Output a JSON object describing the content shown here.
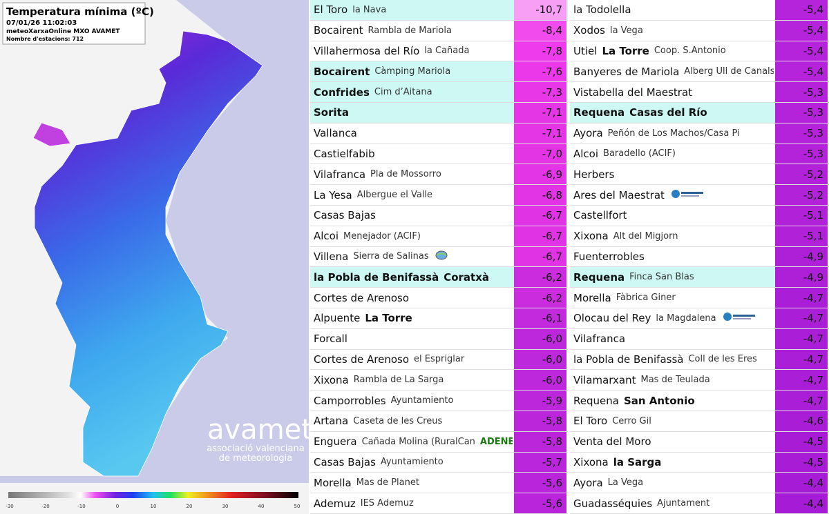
{
  "map": {
    "title": "Temperatura mínima (ºC)",
    "timestamp": "07/01/26 11:02:03",
    "source": "meteoXarxaOnline MXO AVAMET",
    "stations": "Nombre d'estacions: 712",
    "logo": {
      "name": "avamet",
      "line1": "associació valenciana",
      "line2": "de meteorologia"
    },
    "colorbar": {
      "ticks": [
        -30,
        -20,
        -10,
        0,
        10,
        20,
        30,
        40,
        50
      ]
    }
  },
  "table": {
    "columns": [
      {
        "rows": [
          {
            "parts": [
              {
                "text": "El Toro",
                "style": "name"
              },
              {
                "text": "la Nava",
                "style": "place"
              }
            ],
            "value": "-10,7",
            "highlight": true
          },
          {
            "parts": [
              {
                "text": "Bocairent",
                "style": "name"
              },
              {
                "text": "Rambla de Mariola",
                "style": "place"
              }
            ],
            "value": "-8,4"
          },
          {
            "parts": [
              {
                "text": "Villahermosa del Río",
                "style": "name"
              },
              {
                "text": "la Cañada",
                "style": "place"
              }
            ],
            "value": "-7,8"
          },
          {
            "parts": [
              {
                "text": "Bocairent",
                "style": "strong"
              },
              {
                "text": "Càmping Mariola",
                "style": "place"
              }
            ],
            "value": "-7,6",
            "highlight": true
          },
          {
            "parts": [
              {
                "text": "Confrides",
                "style": "strong"
              },
              {
                "text": "Cim d’Aitana",
                "style": "place"
              }
            ],
            "value": "-7,3",
            "highlight": true
          },
          {
            "parts": [
              {
                "text": "Sorita",
                "style": "strong"
              }
            ],
            "value": "-7,1",
            "highlight": true
          },
          {
            "parts": [
              {
                "text": "Vallanca",
                "style": "name"
              }
            ],
            "value": "-7,1"
          },
          {
            "parts": [
              {
                "text": "Castielfabib",
                "style": "name"
              }
            ],
            "value": "-7,0"
          },
          {
            "parts": [
              {
                "text": "Vilafranca",
                "style": "name"
              },
              {
                "text": "Pla de Mossorro",
                "style": "place"
              }
            ],
            "value": "-6,9"
          },
          {
            "parts": [
              {
                "text": "La Yesa",
                "style": "name"
              },
              {
                "text": "Albergue el Valle",
                "style": "place"
              }
            ],
            "value": "-6,8"
          },
          {
            "parts": [
              {
                "text": "Casas Bajas",
                "style": "name"
              }
            ],
            "value": "-6,7"
          },
          {
            "parts": [
              {
                "text": "Alcoi",
                "style": "name"
              },
              {
                "text": "Menejador (ACIF)",
                "style": "place"
              }
            ],
            "value": "-6,7"
          },
          {
            "parts": [
              {
                "text": "Villena",
                "style": "name"
              },
              {
                "text": "Sierra de Salinas",
                "style": "place"
              }
            ],
            "value": "-6,7",
            "icon": "globe"
          },
          {
            "parts": [
              {
                "text": "la Pobla de Benifassà",
                "style": "strong"
              },
              {
                "text": "Coratxà",
                "style": "strong"
              }
            ],
            "value": "-6,2",
            "highlight": true
          },
          {
            "parts": [
              {
                "text": "Cortes de Arenoso",
                "style": "name"
              }
            ],
            "value": "-6,2"
          },
          {
            "parts": [
              {
                "text": "Alpuente",
                "style": "name"
              },
              {
                "text": "La Torre",
                "style": "strong"
              }
            ],
            "value": "-6,1"
          },
          {
            "parts": [
              {
                "text": "Forcall",
                "style": "name"
              }
            ],
            "value": "-6,0"
          },
          {
            "parts": [
              {
                "text": "Cortes de Arenoso",
                "style": "name"
              },
              {
                "text": "el Espriglar",
                "style": "place"
              }
            ],
            "value": "-6,0"
          },
          {
            "parts": [
              {
                "text": "Xixona",
                "style": "name"
              },
              {
                "text": "Rambla de La Sarga",
                "style": "place"
              }
            ],
            "value": "-6,0"
          },
          {
            "parts": [
              {
                "text": "Camporrobles",
                "style": "name"
              },
              {
                "text": "Ayuntamiento",
                "style": "place"
              }
            ],
            "value": "-5,9"
          },
          {
            "parts": [
              {
                "text": "Artana",
                "style": "name"
              },
              {
                "text": "Caseta de les Creus",
                "style": "place"
              }
            ],
            "value": "-5,8"
          },
          {
            "parts": [
              {
                "text": "Enguera",
                "style": "name"
              },
              {
                "text": "Cañada Molina (RuralCan",
                "style": "place"
              },
              {
                "text": "ADENE",
                "style": "brand"
              },
              {
                "text": ")",
                "style": "place"
              }
            ],
            "value": "-5,8"
          },
          {
            "parts": [
              {
                "text": "Casas Bajas",
                "style": "name"
              },
              {
                "text": "Ayuntamiento",
                "style": "place"
              }
            ],
            "value": "-5,7"
          },
          {
            "parts": [
              {
                "text": "Morella",
                "style": "name"
              },
              {
                "text": "Mas de Planet",
                "style": "place"
              }
            ],
            "value": "-5,6"
          },
          {
            "parts": [
              {
                "text": "Ademuz",
                "style": "name"
              },
              {
                "text": "IES Ademuz",
                "style": "place"
              }
            ],
            "value": "-5,6"
          }
        ]
      },
      {
        "rows": [
          {
            "parts": [
              {
                "text": "la Todolella",
                "style": "name"
              }
            ],
            "value": "-5,4"
          },
          {
            "parts": [
              {
                "text": "Xodos",
                "style": "name"
              },
              {
                "text": "la Vega",
                "style": "place"
              }
            ],
            "value": "-5,4"
          },
          {
            "parts": [
              {
                "text": "Utiel",
                "style": "name"
              },
              {
                "text": "La Torre",
                "style": "strong"
              },
              {
                "text": "Coop. S.Antonio",
                "style": "place"
              }
            ],
            "value": "-5,4"
          },
          {
            "parts": [
              {
                "text": "Banyeres de Mariola",
                "style": "name"
              },
              {
                "text": "Alberg Ull de Canals",
                "style": "place"
              }
            ],
            "value": "-5,4"
          },
          {
            "parts": [
              {
                "text": "Vistabella del Maestrat",
                "style": "name"
              }
            ],
            "value": "-5,3"
          },
          {
            "parts": [
              {
                "text": "Requena",
                "style": "strong"
              },
              {
                "text": "Casas del Río",
                "style": "strong"
              }
            ],
            "value": "-5,3",
            "highlight": true
          },
          {
            "parts": [
              {
                "text": "Ayora",
                "style": "name"
              },
              {
                "text": "Peñón de Los Machos/Casa Pi",
                "style": "place"
              }
            ],
            "value": "-5,3"
          },
          {
            "parts": [
              {
                "text": "Alcoi",
                "style": "name"
              },
              {
                "text": "Baradello (ACIF)",
                "style": "place"
              }
            ],
            "value": "-5,3"
          },
          {
            "parts": [
              {
                "text": "Herbers",
                "style": "name"
              }
            ],
            "value": "-5,2"
          },
          {
            "parts": [
              {
                "text": "Ares del Maestrat",
                "style": "name"
              }
            ],
            "value": "-5,2",
            "icon": "electra"
          },
          {
            "parts": [
              {
                "text": "Castellfort",
                "style": "name"
              }
            ],
            "value": "-5,1"
          },
          {
            "parts": [
              {
                "text": "Xixona",
                "style": "name"
              },
              {
                "text": "Alt del Migjorn",
                "style": "place"
              }
            ],
            "value": "-5,1"
          },
          {
            "parts": [
              {
                "text": "Fuenterrobles",
                "style": "name"
              }
            ],
            "value": "-4,9"
          },
          {
            "parts": [
              {
                "text": "Requena",
                "style": "strong"
              },
              {
                "text": "Finca San Blas",
                "style": "place"
              }
            ],
            "value": "-4,9",
            "highlight": true
          },
          {
            "parts": [
              {
                "text": "Morella",
                "style": "name"
              },
              {
                "text": "Fàbrica Giner",
                "style": "place"
              }
            ],
            "value": "-4,7"
          },
          {
            "parts": [
              {
                "text": "Olocau del Rey",
                "style": "name"
              },
              {
                "text": "la Magdalena",
                "style": "place"
              }
            ],
            "value": "-4,7",
            "icon": "electra"
          },
          {
            "parts": [
              {
                "text": "Vilafranca",
                "style": "name"
              }
            ],
            "value": "-4,7"
          },
          {
            "parts": [
              {
                "text": "la Pobla de Benifassà",
                "style": "name"
              },
              {
                "text": "Coll de les Eres",
                "style": "place"
              }
            ],
            "value": "-4,7"
          },
          {
            "parts": [
              {
                "text": "Vilamarxant",
                "style": "name"
              },
              {
                "text": "Mas de Teulada",
                "style": "place"
              }
            ],
            "value": "-4,7"
          },
          {
            "parts": [
              {
                "text": "Requena",
                "style": "name"
              },
              {
                "text": "San Antonio",
                "style": "strong"
              }
            ],
            "value": "-4,7"
          },
          {
            "parts": [
              {
                "text": "El Toro",
                "style": "name"
              },
              {
                "text": "Cerro Gil",
                "style": "place"
              }
            ],
            "value": "-4,6"
          },
          {
            "parts": [
              {
                "text": "Venta del Moro",
                "style": "name"
              }
            ],
            "value": "-4,5"
          },
          {
            "parts": [
              {
                "text": "Xixona",
                "style": "name"
              },
              {
                "text": "la Sarga",
                "style": "strong"
              }
            ],
            "value": "-4,5"
          },
          {
            "parts": [
              {
                "text": "Ayora",
                "style": "name"
              },
              {
                "text": "La Vega",
                "style": "place"
              }
            ],
            "value": "-4,4"
          },
          {
            "parts": [
              {
                "text": "Guadasséquies",
                "style": "name"
              },
              {
                "text": "Ajuntament",
                "style": "place"
              }
            ],
            "value": "-4,4"
          }
        ]
      }
    ]
  }
}
